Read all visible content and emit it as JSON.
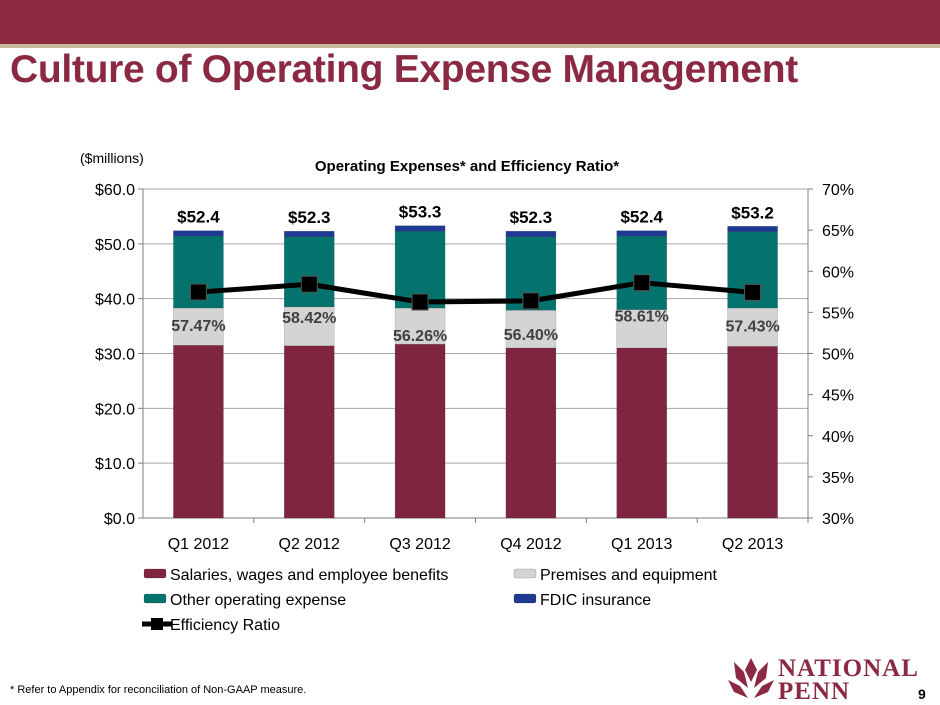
{
  "slide": {
    "title": "Culture of Operating Expense Management",
    "footnote": "* Refer to Appendix for reconciliation of Non-GAAP measure.",
    "page_number": "9",
    "logo": {
      "line1": "NATIONAL",
      "line2": "PENN"
    }
  },
  "colors": {
    "brand": "#8b2942",
    "salaries": "#7f2540",
    "premises": "#d4d4d4",
    "other": "#05736d",
    "fdic": "#1f3a93",
    "ratio_line": "#000000"
  },
  "chart_data": {
    "type": "bar",
    "stacked": true,
    "title": "Operating Expenses* and Efficiency Ratio*",
    "units_label": "($millions)",
    "categories": [
      "Q1 2012",
      "Q2 2012",
      "Q3 2012",
      "Q4 2012",
      "Q1 2013",
      "Q2 2013"
    ],
    "series": [
      {
        "name": "Salaries, wages and employee benefits",
        "values": [
          31.5,
          31.4,
          31.7,
          31.0,
          31.0,
          31.3
        ]
      },
      {
        "name": "Premises and equipment",
        "values": [
          6.8,
          7.1,
          6.6,
          6.9,
          7.0,
          7.0
        ]
      },
      {
        "name": "Other operating expense",
        "values": [
          13.1,
          12.8,
          14.0,
          13.4,
          13.4,
          13.9
        ]
      },
      {
        "name": "FDIC insurance",
        "values": [
          1.0,
          1.0,
          1.0,
          1.0,
          1.0,
          1.0
        ]
      }
    ],
    "totals": [
      "$52.4",
      "$52.3",
      "$53.3",
      "$52.3",
      "$52.4",
      "$53.2"
    ],
    "line_series": {
      "name": "Efficiency Ratio",
      "axis": "right",
      "values": [
        57.47,
        58.42,
        56.26,
        56.4,
        58.61,
        57.43
      ],
      "labels": [
        "57.47%",
        "58.42%",
        "56.26%",
        "56.40%",
        "58.61%",
        "57.43%"
      ]
    },
    "y_left": {
      "ylim": [
        0,
        60
      ],
      "ticks": [
        0,
        10,
        20,
        30,
        40,
        50,
        60
      ],
      "tick_labels": [
        "$0.0",
        "$10.0",
        "$20.0",
        "$30.0",
        "$40.0",
        "$50.0",
        "$60.0"
      ]
    },
    "y_right": {
      "ylim": [
        30,
        70
      ],
      "ticks": [
        30,
        35,
        40,
        45,
        50,
        55,
        60,
        65,
        70
      ],
      "tick_labels": [
        "30%",
        "35%",
        "40%",
        "45%",
        "50%",
        "55%",
        "60%",
        "65%",
        "70%"
      ]
    },
    "grid": true,
    "legend_position": "bottom"
  }
}
